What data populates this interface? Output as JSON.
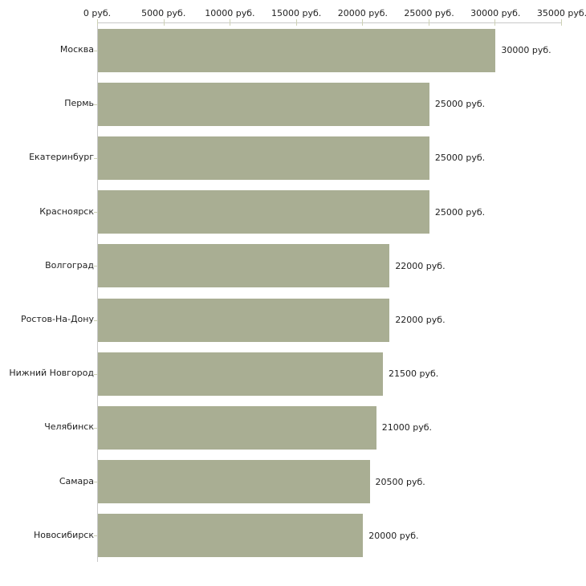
{
  "chart_data": {
    "type": "bar",
    "orientation": "horizontal",
    "title": "",
    "xlabel": "",
    "ylabel": "",
    "categories": [
      "Москва",
      "Пермь",
      "Екатеринбург",
      "Красноярск",
      "Волгоград",
      "Ростов-На-Дону",
      "Нижний Новгород",
      "Челябинск",
      "Самара",
      "Новосибирск"
    ],
    "values": [
      30000,
      25000,
      25000,
      25000,
      22000,
      22000,
      21500,
      21000,
      20500,
      20000
    ],
    "bar_value_labels": [
      "30000 руб.",
      "25000 руб.",
      "25000 руб.",
      "25000 руб.",
      "22000 руб.",
      "22000 руб.",
      "21500 руб.",
      "21000 руб.",
      "20500 руб.",
      "20000 руб."
    ],
    "x_tick_values": [
      0,
      5000,
      10000,
      15000,
      20000,
      25000,
      30000,
      35000
    ],
    "x_tick_labels": [
      "0 руб.",
      "5000 руб.",
      "10000 руб.",
      "15000 руб.",
      "20000 руб.",
      "25000 руб.",
      "30000 руб.",
      "35000 руб."
    ],
    "xlim": [
      0,
      35000
    ],
    "grid": false,
    "legend": "none",
    "unit_suffix": " руб.",
    "colors": {
      "bar": "#a9ae93",
      "axis": "#c8c8c8",
      "tick": "#cdd1b5",
      "text": "#1f1f1f",
      "background": "#ffffff"
    }
  }
}
